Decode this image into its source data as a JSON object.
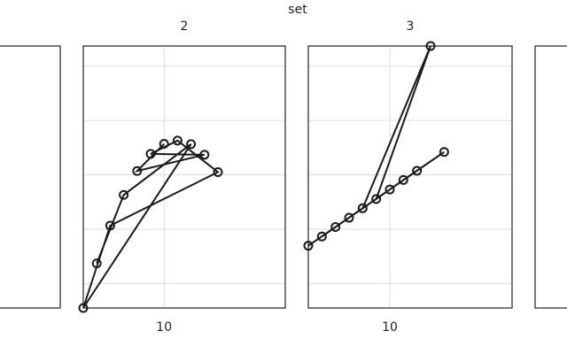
{
  "chart_data": {
    "type": "line",
    "title": "set",
    "x": [
      10,
      8,
      13,
      9,
      11,
      14,
      6,
      4,
      12,
      7,
      5
    ],
    "series": [
      {
        "name": "2",
        "color": "#1a1a1a",
        "values": [
          9.14,
          8.14,
          8.74,
          8.77,
          9.26,
          8.1,
          6.13,
          3.1,
          9.13,
          7.26,
          4.74
        ]
      },
      {
        "name": "3",
        "color": "#1a1a1a",
        "values": [
          7.46,
          6.77,
          12.74,
          7.11,
          7.81,
          8.84,
          6.08,
          5.39,
          8.15,
          6.42,
          5.73
        ]
      }
    ],
    "xlim": [
      4,
      19
    ],
    "xticks": [
      10
    ],
    "ylim": [
      3.1,
      12.74
    ],
    "yticks": [
      4,
      6,
      8,
      10,
      12
    ],
    "grid": true
  }
}
